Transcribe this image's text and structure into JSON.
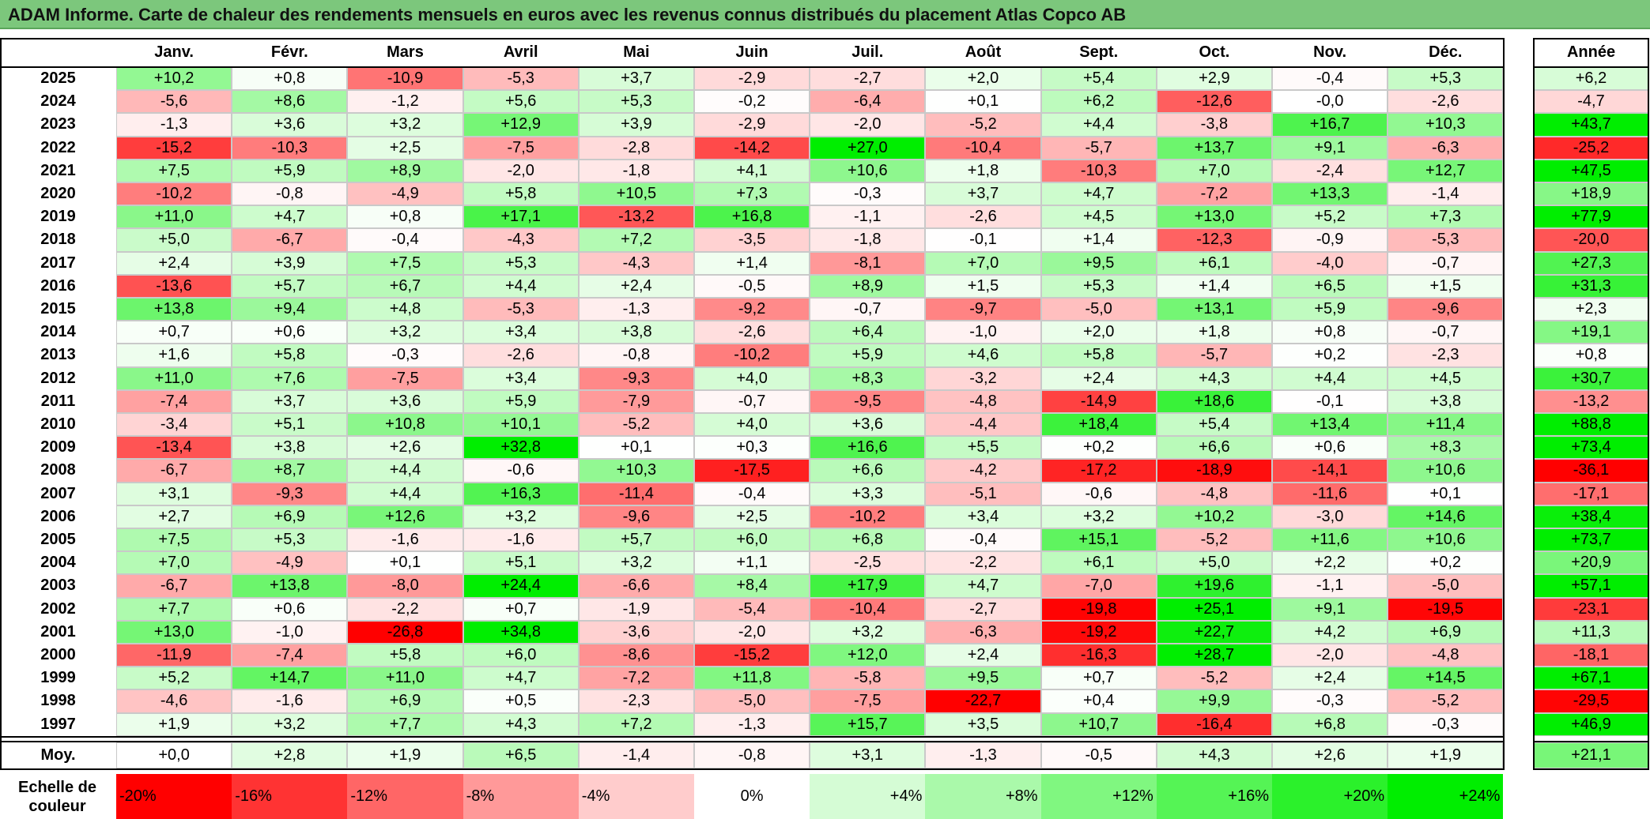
{
  "title": "ADAM Informe. Carte de chaleur des rendements mensuels en euros avec les revenus connus distribués du placement Atlas Copco AB",
  "chart_data": {
    "type": "heatmap",
    "title": "ADAM Informe. Carte de chaleur des rendements mensuels en euros avec les revenus connus distribués du placement Atlas Copco AB",
    "columns": [
      "Janv.",
      "Févr.",
      "Mars",
      "Avril",
      "Mai",
      "Juin",
      "Juil.",
      "Août",
      "Sept.",
      "Oct.",
      "Nov.",
      "Déc."
    ],
    "year_column_label": "Année",
    "rows": [
      {
        "label": "2025",
        "values": [
          "+10,2",
          "+0,8",
          "-10,9",
          "-5,3",
          "+3,7",
          "-2,9",
          "-2,7",
          "+2,0",
          "+5,4",
          "+2,9",
          "-0,4",
          "+5,3"
        ],
        "year": "+6,2"
      },
      {
        "label": "2024",
        "values": [
          "-5,6",
          "+8,6",
          "-1,2",
          "+5,6",
          "+5,3",
          "-0,2",
          "-6,4",
          "+0,1",
          "+6,2",
          "-12,6",
          "-0,0",
          "-2,6"
        ],
        "year": "-4,7"
      },
      {
        "label": "2023",
        "values": [
          "-1,3",
          "+3,6",
          "+3,2",
          "+12,9",
          "+3,9",
          "-2,9",
          "-2,0",
          "-5,2",
          "+4,4",
          "-3,8",
          "+16,7",
          "+10,3"
        ],
        "year": "+43,7"
      },
      {
        "label": "2022",
        "values": [
          "-15,2",
          "-10,3",
          "+2,5",
          "-7,5",
          "-2,8",
          "-14,2",
          "+27,0",
          "-10,4",
          "-5,7",
          "+13,7",
          "+9,1",
          "-6,3"
        ],
        "year": "-25,2"
      },
      {
        "label": "2021",
        "values": [
          "+7,5",
          "+5,9",
          "+8,9",
          "-2,0",
          "-1,8",
          "+4,1",
          "+10,6",
          "+1,8",
          "-10,3",
          "+7,0",
          "-2,4",
          "+12,7"
        ],
        "year": "+47,5"
      },
      {
        "label": "2020",
        "values": [
          "-10,2",
          "-0,8",
          "-4,9",
          "+5,8",
          "+10,5",
          "+7,3",
          "-0,3",
          "+3,7",
          "+4,7",
          "-7,2",
          "+13,3",
          "-1,4"
        ],
        "year": "+18,9"
      },
      {
        "label": "2019",
        "values": [
          "+11,0",
          "+4,7",
          "+0,8",
          "+17,1",
          "-13,2",
          "+16,8",
          "-1,1",
          "-2,6",
          "+4,5",
          "+13,0",
          "+5,2",
          "+7,3"
        ],
        "year": "+77,9"
      },
      {
        "label": "2018",
        "values": [
          "+5,0",
          "-6,7",
          "-0,4",
          "-4,3",
          "+7,2",
          "-3,5",
          "-1,8",
          "-0,1",
          "+1,4",
          "-12,3",
          "-0,9",
          "-5,3"
        ],
        "year": "-20,0"
      },
      {
        "label": "2017",
        "values": [
          "+2,4",
          "+3,9",
          "+7,5",
          "+5,3",
          "-4,3",
          "+1,4",
          "-8,1",
          "+7,0",
          "+9,5",
          "+6,1",
          "-4,0",
          "-0,7"
        ],
        "year": "+27,3"
      },
      {
        "label": "2016",
        "values": [
          "-13,6",
          "+5,7",
          "+6,7",
          "+4,4",
          "+2,4",
          "-0,5",
          "+8,9",
          "+1,5",
          "+5,3",
          "+1,4",
          "+6,5",
          "+1,5"
        ],
        "year": "+31,3"
      },
      {
        "label": "2015",
        "values": [
          "+13,8",
          "+9,4",
          "+4,8",
          "-5,3",
          "-1,3",
          "-9,2",
          "-0,7",
          "-9,7",
          "-5,0",
          "+13,1",
          "+5,9",
          "-9,6"
        ],
        "year": "+2,3"
      },
      {
        "label": "2014",
        "values": [
          "+0,7",
          "+0,6",
          "+3,2",
          "+3,4",
          "+3,8",
          "-2,6",
          "+6,4",
          "-1,0",
          "+2,0",
          "+1,8",
          "+0,8",
          "-0,7"
        ],
        "year": "+19,1"
      },
      {
        "label": "2013",
        "values": [
          "+1,6",
          "+5,8",
          "-0,3",
          "-2,6",
          "-0,8",
          "-10,2",
          "+5,9",
          "+4,6",
          "+5,8",
          "-5,7",
          "+0,2",
          "-2,3"
        ],
        "year": "+0,8"
      },
      {
        "label": "2012",
        "values": [
          "+11,0",
          "+7,6",
          "-7,5",
          "+3,4",
          "-9,3",
          "+4,0",
          "+8,3",
          "-3,2",
          "+2,4",
          "+4,3",
          "+4,4",
          "+4,5"
        ],
        "year": "+30,7"
      },
      {
        "label": "2011",
        "values": [
          "-7,4",
          "+3,7",
          "+3,6",
          "+5,9",
          "-7,9",
          "-0,7",
          "-9,5",
          "-4,8",
          "-14,9",
          "+18,6",
          "-0,1",
          "+3,8"
        ],
        "year": "-13,2"
      },
      {
        "label": "2010",
        "values": [
          "-3,4",
          "+5,1",
          "+10,8",
          "+10,1",
          "-5,2",
          "+4,0",
          "+3,6",
          "-4,4",
          "+18,4",
          "+5,4",
          "+13,4",
          "+11,4"
        ],
        "year": "+88,8"
      },
      {
        "label": "2009",
        "values": [
          "-13,4",
          "+3,8",
          "+2,6",
          "+32,8",
          "+0,1",
          "+0,3",
          "+16,6",
          "+5,5",
          "+0,2",
          "+6,6",
          "+0,6",
          "+8,3"
        ],
        "year": "+73,4"
      },
      {
        "label": "2008",
        "values": [
          "-6,7",
          "+8,7",
          "+4,4",
          "-0,6",
          "+10,3",
          "-17,5",
          "+6,6",
          "-4,2",
          "-17,2",
          "-18,9",
          "-14,1",
          "+10,6"
        ],
        "year": "-36,1"
      },
      {
        "label": "2007",
        "values": [
          "+3,1",
          "-9,3",
          "+4,4",
          "+16,3",
          "-11,4",
          "-0,4",
          "+3,3",
          "-5,1",
          "-0,6",
          "-4,8",
          "-11,6",
          "+0,1"
        ],
        "year": "-17,1"
      },
      {
        "label": "2006",
        "values": [
          "+2,7",
          "+6,9",
          "+12,6",
          "+3,2",
          "-9,6",
          "+2,5",
          "-10,2",
          "+3,4",
          "+3,2",
          "+10,2",
          "-3,0",
          "+14,6"
        ],
        "year": "+38,4"
      },
      {
        "label": "2005",
        "values": [
          "+7,5",
          "+5,3",
          "-1,6",
          "-1,6",
          "+5,7",
          "+6,0",
          "+6,8",
          "-0,4",
          "+15,1",
          "-5,2",
          "+11,6",
          "+10,6"
        ],
        "year": "+73,7"
      },
      {
        "label": "2004",
        "values": [
          "+7,0",
          "-4,9",
          "+0,1",
          "+5,1",
          "+3,2",
          "+1,1",
          "-2,5",
          "-2,2",
          "+6,1",
          "+5,0",
          "+2,2",
          "+0,2"
        ],
        "year": "+20,9"
      },
      {
        "label": "2003",
        "values": [
          "-6,7",
          "+13,8",
          "-8,0",
          "+24,4",
          "-6,6",
          "+8,4",
          "+17,9",
          "+4,7",
          "-7,0",
          "+19,6",
          "-1,1",
          "-5,0"
        ],
        "year": "+57,1"
      },
      {
        "label": "2002",
        "values": [
          "+7,7",
          "+0,6",
          "-2,2",
          "+0,7",
          "-1,9",
          "-5,4",
          "-10,4",
          "-2,7",
          "-19,8",
          "+25,1",
          "+9,1",
          "-19,5"
        ],
        "year": "-23,1"
      },
      {
        "label": "2001",
        "values": [
          "+13,0",
          "-1,0",
          "-26,8",
          "+34,8",
          "-3,6",
          "-2,0",
          "+3,2",
          "-6,3",
          "-19,2",
          "+22,7",
          "+4,2",
          "+6,9"
        ],
        "year": "+11,3"
      },
      {
        "label": "2000",
        "values": [
          "-11,9",
          "-7,4",
          "+5,8",
          "+6,0",
          "-8,6",
          "-15,2",
          "+12,0",
          "+2,4",
          "-16,3",
          "+28,7",
          "-2,0",
          "-4,8"
        ],
        "year": "-18,1"
      },
      {
        "label": "1999",
        "values": [
          "+5,2",
          "+14,7",
          "+11,0",
          "+4,7",
          "-7,2",
          "+11,8",
          "-5,8",
          "+9,5",
          "+0,7",
          "-5,2",
          "+2,4",
          "+14,5"
        ],
        "year": "+67,1"
      },
      {
        "label": "1998",
        "values": [
          "-4,6",
          "-1,6",
          "+6,9",
          "+0,5",
          "-2,3",
          "-5,0",
          "-7,5",
          "-22,7",
          "+0,4",
          "+9,9",
          "-0,3",
          "-5,2"
        ],
        "year": "-29,5"
      },
      {
        "label": "1997",
        "values": [
          "+1,9",
          "+3,2",
          "+7,7",
          "+4,3",
          "+7,2",
          "-1,3",
          "+15,7",
          "+3,5",
          "+10,7",
          "-16,4",
          "+6,8",
          "-0,3"
        ],
        "year": "+46,9"
      }
    ],
    "average_row": {
      "label": "Moy.",
      "values": [
        "+0,0",
        "+2,8",
        "+1,9",
        "+6,5",
        "-1,4",
        "-0,8",
        "+3,1",
        "-1,3",
        "-0,5",
        "+4,3",
        "+2,6",
        "+1,9"
      ],
      "year": "+21,1"
    },
    "color_scale": {
      "label": "Echelle de couleur",
      "stops": [
        "-20%",
        "-16%",
        "-12%",
        "-8%",
        "-4%",
        "0%",
        "+4%",
        "+8%",
        "+12%",
        "+16%",
        "+20%",
        "+24%"
      ],
      "stop_values": [
        -20,
        -16,
        -12,
        -8,
        -4,
        0,
        4,
        8,
        12,
        16,
        20,
        24
      ],
      "negative_color": "#ff0000",
      "neutral_color": "#ffffff",
      "positive_color": "#00ee00"
    }
  }
}
